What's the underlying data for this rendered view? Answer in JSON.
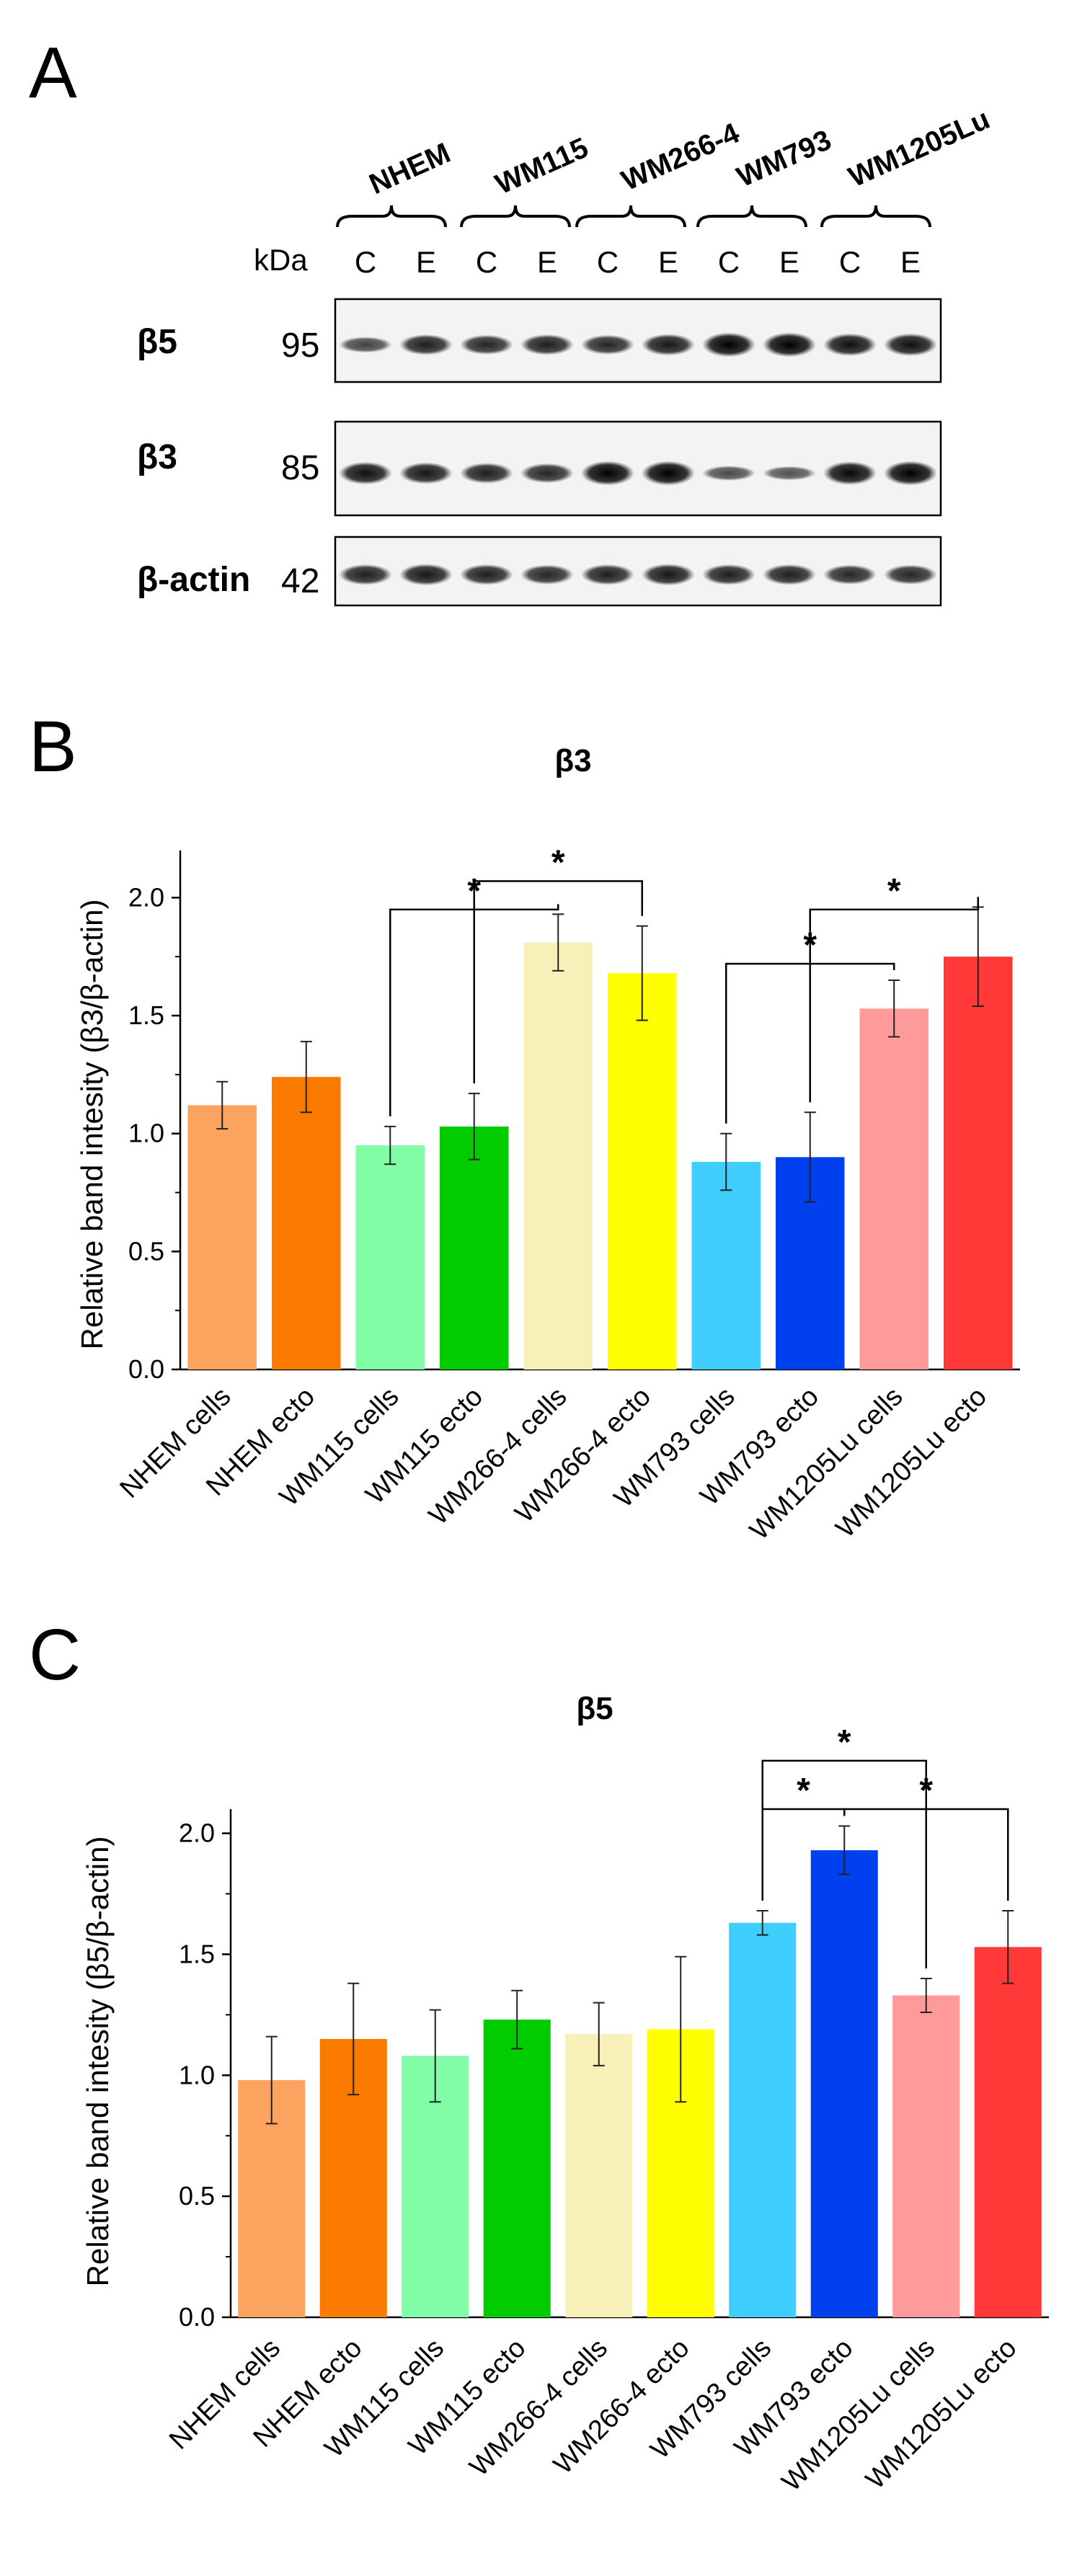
{
  "blot": {
    "panel_label": "A",
    "kda_label": "kDa",
    "cell_lines": [
      "NHEM",
      "WM115",
      "WM266-4",
      "WM793",
      "WM1205Lu"
    ],
    "lane_labels": [
      "C",
      "E",
      "C",
      "E",
      "C",
      "E",
      "C",
      "E",
      "C",
      "E"
    ],
    "rows": [
      {
        "protein": "β5",
        "kda": "95",
        "intensity": [
          0.55,
          0.8,
          0.75,
          0.8,
          0.75,
          0.85,
          1.0,
          1.0,
          0.9,
          0.9
        ]
      },
      {
        "protein": "β3",
        "kda": "85",
        "intensity": [
          0.9,
          0.85,
          0.8,
          0.75,
          1.0,
          1.0,
          0.5,
          0.45,
          0.95,
          1.0
        ]
      },
      {
        "protein": "β-actin",
        "kda": "42",
        "intensity": [
          0.8,
          0.85,
          0.8,
          0.75,
          0.8,
          0.85,
          0.8,
          0.8,
          0.75,
          0.75
        ]
      }
    ]
  },
  "chart_data": [
    {
      "panel_label": "B",
      "type": "bar",
      "title": "β3",
      "ylabel": "Relative band intesity (β3/β-actin)",
      "xlabel": "",
      "ylim": [
        0,
        2.2
      ],
      "yticks": [
        "0.0",
        "0.5",
        "1.0",
        "1.5",
        "2.0"
      ],
      "categories": [
        "NHEM cells",
        "NHEM ecto",
        "WM115 cells",
        "WM115 ecto",
        "WM266-4 cells",
        "WM266-4 ecto",
        "WM793 cells",
        "WM793 ecto",
        "WM1205Lu cells",
        "WM1205Lu ecto"
      ],
      "values": [
        1.12,
        1.24,
        0.95,
        1.03,
        1.81,
        1.68,
        0.88,
        0.9,
        1.53,
        1.75
      ],
      "errors": [
        0.1,
        0.15,
        0.08,
        0.14,
        0.12,
        0.2,
        0.12,
        0.19,
        0.12,
        0.21
      ],
      "colors": [
        "#FBA35F",
        "#FA7B00",
        "#80FDA6",
        "#00CC00",
        "#F8F0B9",
        "#FFFF00",
        "#40CEFF",
        "#0040EE",
        "#FF9A9A",
        "#FF3838"
      ],
      "significance": [
        {
          "from": 2,
          "to": 4,
          "label": "*",
          "y_level": 1.95
        },
        {
          "from": 3,
          "to": 5,
          "label": "*",
          "y_level": 2.07
        },
        {
          "from": 6,
          "to": 8,
          "label": "*",
          "y_level": 1.72
        },
        {
          "from": 7,
          "to": 9,
          "label": "*",
          "y_level": 1.95
        }
      ]
    },
    {
      "panel_label": "C",
      "type": "bar",
      "title": "β5",
      "ylabel": "Relative band intesity (β5/β-actin)",
      "xlabel": "",
      "ylim": [
        0,
        2.1
      ],
      "yticks": [
        "0.0",
        "0.5",
        "1.0",
        "1.5",
        "2.0"
      ],
      "categories": [
        "NHEM cells",
        "NHEM ecto",
        "WM115 cells",
        "WM115 ecto",
        "WM266-4 cells",
        "WM266-4 ecto",
        "WM793 cells",
        "WM793 ecto",
        "WM1205Lu cells",
        "WM1205Lu ecto"
      ],
      "values": [
        0.98,
        1.15,
        1.08,
        1.23,
        1.17,
        1.19,
        1.63,
        1.93,
        1.33,
        1.53
      ],
      "errors": [
        0.18,
        0.23,
        0.19,
        0.12,
        0.13,
        0.3,
        0.05,
        0.1,
        0.07,
        0.15
      ],
      "colors": [
        "#FBA35F",
        "#FA7B00",
        "#80FDA6",
        "#00CC00",
        "#F8F0B9",
        "#FFFF00",
        "#40CEFF",
        "#0040EE",
        "#FF9A9A",
        "#FF3838"
      ],
      "significance": [
        {
          "from": 6,
          "to": 7,
          "label": "*",
          "y_level": 2.1
        },
        {
          "from": 6,
          "to": 8,
          "label": "*",
          "y_level": 2.3
        },
        {
          "from": 7,
          "to": 9,
          "label": "*",
          "y_level": 2.1
        }
      ]
    }
  ]
}
